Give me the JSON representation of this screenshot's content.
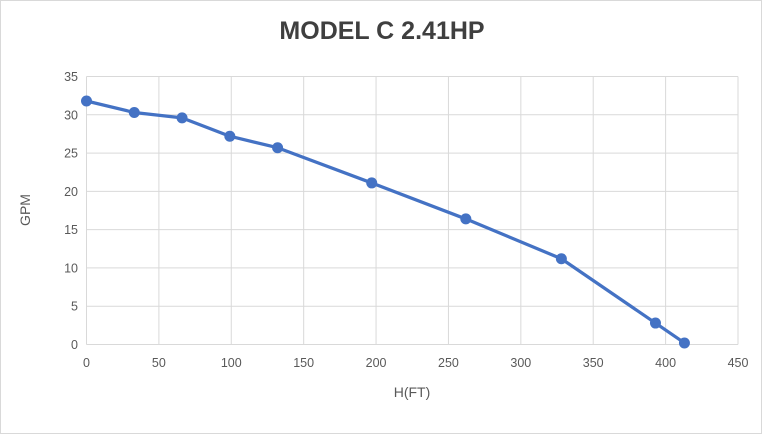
{
  "chart": {
    "title": "MODEL C 2.41HP"
  },
  "chart_data": {
    "type": "line",
    "title": "MODEL C 2.41HP",
    "xlabel": "H(FT)",
    "ylabel": "GPM",
    "x": [
      0,
      33,
      66,
      99,
      132,
      197,
      262,
      328,
      393,
      413
    ],
    "y": [
      31.8,
      30.3,
      29.6,
      27.2,
      25.7,
      21.1,
      16.4,
      11.2,
      2.8,
      0.2
    ],
    "series_name": "MODEL C 2.41HP",
    "xlim": [
      0,
      450
    ],
    "ylim": [
      0,
      35
    ],
    "xticks": [
      0,
      50,
      100,
      150,
      200,
      250,
      300,
      350,
      400,
      450
    ],
    "yticks": [
      0,
      5,
      10,
      15,
      20,
      25,
      30,
      35
    ],
    "grid": true,
    "legend": false,
    "marker": "circle",
    "line_color": "#4472c4",
    "marker_color": "#4472c4",
    "grid_color": "#d9d9d9",
    "tick_text_color": "#595959",
    "axis_title_color": "#595959",
    "title_color": "#3f3f3f",
    "background_color": "#ffffff",
    "border_color": "#d9d9d9"
  }
}
